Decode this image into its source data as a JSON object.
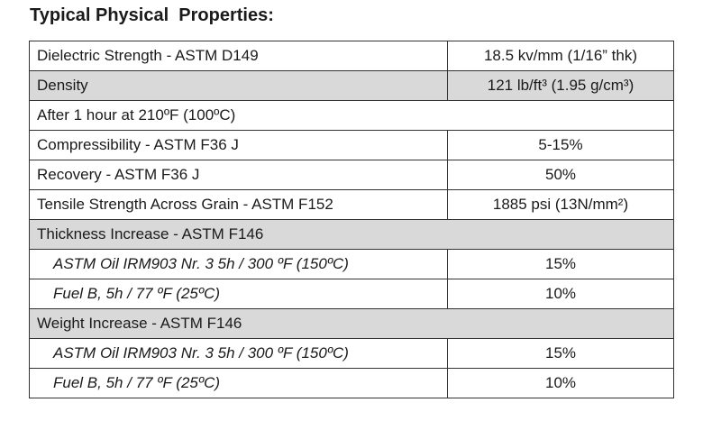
{
  "title": "Typical Physical  Properties:",
  "table": {
    "rows": [
      [
        "Dielectric Strength - ASTM D149",
        "18.5 kv/mm (1/16” thk)"
      ],
      [
        "Density",
        "121 lb/ft³ (1.95 g/cm³)"
      ],
      [
        "After 1 hour at 210ºF (100ºC)"
      ],
      [
        "Compressibility - ASTM F36 J",
        "5-15%"
      ],
      [
        "Recovery - ASTM F36 J",
        "50%"
      ],
      [
        "Tensile Strength Across Grain - ASTM F152",
        "1885 psi (13N/mm²)"
      ],
      [
        "Thickness Increase - ASTM F146"
      ],
      [
        "ASTM Oil IRM903 Nr. 3 5h / 300 ºF (150ºC)",
        "15%"
      ],
      [
        "Fuel B, 5h / 77 ºF (25ºC)",
        "10%"
      ],
      [
        "Weight Increase - ASTM F146"
      ],
      [
        "ASTM Oil IRM903 Nr. 3 5h / 300 ºF (150ºC)",
        "15%"
      ],
      [
        "Fuel B, 5h / 77 ºF (25ºC)",
        "10%"
      ]
    ]
  }
}
